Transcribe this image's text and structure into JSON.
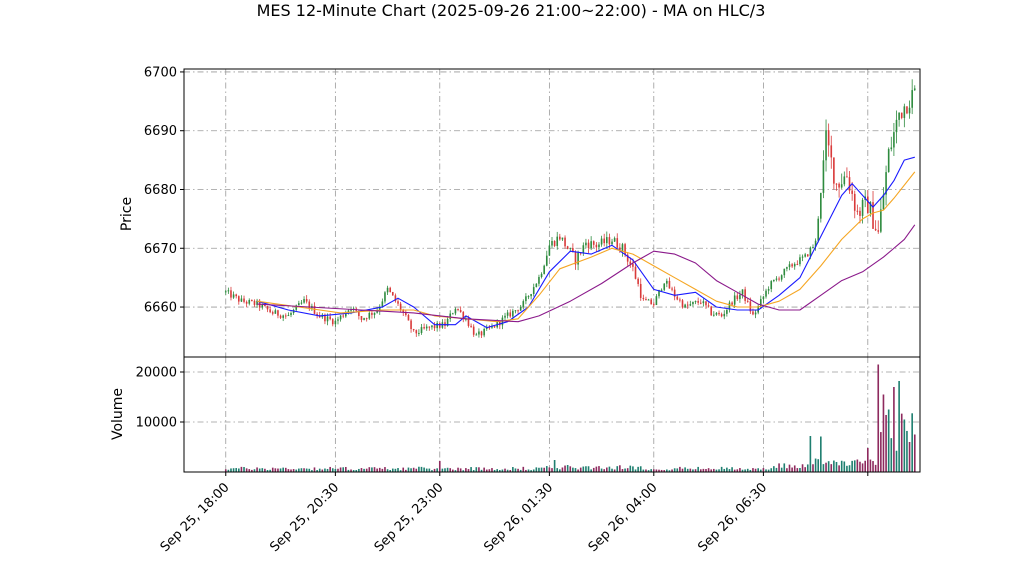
{
  "title": "MES 12-Minute Chart (2025-09-26 21:00~22:00) - MA on HLC/3",
  "colors": {
    "up": "#2e8b3e",
    "down": "#d93a3a",
    "vol_up": "#1f7f70",
    "vol_down": "#8e2a5e",
    "ma_fast": "#1a1aff",
    "ma_mid": "#f5a623",
    "ma_slow": "#8b1a8b",
    "grid": "#9a9a9a"
  },
  "chart_data": {
    "type": "candlestick",
    "price_panel": {
      "ylabel": "Price",
      "ylim": [
        6651.5,
        6700.5
      ],
      "yticks": [
        6660,
        6670,
        6680,
        6690,
        6700
      ],
      "ytick_labels": [
        "6660",
        "6670",
        "6680",
        "6690",
        "6700"
      ]
    },
    "volume_panel": {
      "ylabel": "Volume",
      "ylim": [
        0,
        23000
      ],
      "yticks": [
        10000,
        20000
      ],
      "ytick_labels": [
        "10000",
        "20000"
      ]
    },
    "x_axis": {
      "xlim": [
        -4,
        66.5
      ],
      "ticks": [
        0,
        10.5,
        20.5,
        31,
        41,
        51.5,
        61.5
      ],
      "tick_labels": [
        "Sep 25, 18:00",
        "Sep 25, 20:30",
        "Sep 25, 23:00",
        "Sep 26, 01:30",
        "Sep 26, 04:00",
        "Sep 26, 06:30",
        ""
      ]
    },
    "grid": true,
    "series_anchors_close": [
      [
        0,
        6662.5
      ],
      [
        1.5,
        6661
      ],
      [
        3,
        6660.5
      ],
      [
        4.5,
        6659
      ],
      [
        6,
        6658.5
      ],
      [
        7.5,
        6661
      ],
      [
        9,
        6658.5
      ],
      [
        10.5,
        6657.5
      ],
      [
        12,
        6660
      ],
      [
        13,
        6658
      ],
      [
        14.5,
        6659.5
      ],
      [
        15.5,
        6663
      ],
      [
        17,
        6659
      ],
      [
        18,
        6655.5
      ],
      [
        19.5,
        6656.5
      ],
      [
        21,
        6657
      ],
      [
        22,
        6660
      ],
      [
        23,
        6658
      ],
      [
        24,
        6655
      ],
      [
        25.5,
        6656.5
      ],
      [
        27,
        6658.5
      ],
      [
        28.5,
        6660.5
      ],
      [
        30,
        6665
      ],
      [
        31,
        6670.5
      ],
      [
        32,
        6672
      ],
      [
        33.5,
        6668
      ],
      [
        34.5,
        6671
      ],
      [
        35.5,
        6670.5
      ],
      [
        37,
        6671.5
      ],
      [
        38,
        6670
      ],
      [
        39,
        6666.5
      ],
      [
        40,
        6661
      ],
      [
        41,
        6660.5
      ],
      [
        42,
        6664.5
      ],
      [
        43,
        6662
      ],
      [
        44,
        6660
      ],
      [
        45.5,
        6661
      ],
      [
        46.5,
        6659
      ],
      [
        47.5,
        6658.5
      ],
      [
        48.5,
        6661
      ],
      [
        49.5,
        6662.5
      ],
      [
        50.5,
        6658.5
      ],
      [
        51,
        6660
      ],
      [
        52,
        6663.5
      ],
      [
        53.5,
        6666
      ],
      [
        54.5,
        6667.5
      ],
      [
        55.5,
        6668.5
      ],
      [
        56.5,
        6671
      ],
      [
        57.5,
        6688.5
      ],
      [
        58.5,
        6681
      ],
      [
        59.5,
        6682.5
      ],
      [
        60.5,
        6676
      ],
      [
        61.5,
        6677.5
      ],
      [
        62.5,
        6672.5
      ],
      [
        63.5,
        6686
      ],
      [
        64.5,
        6693
      ],
      [
        65.5,
        6695.5
      ],
      [
        66,
        6696.5
      ]
    ],
    "moving_averages": [
      {
        "color_key": "ma_fast",
        "points": [
          [
            3,
            6661
          ],
          [
            6,
            6659.5
          ],
          [
            9,
            6658.5
          ],
          [
            12,
            6659
          ],
          [
            15,
            6660
          ],
          [
            16.5,
            6661.5
          ],
          [
            18,
            6660
          ],
          [
            20,
            6657
          ],
          [
            22,
            6657
          ],
          [
            23,
            6658.5
          ],
          [
            25,
            6656.5
          ],
          [
            27,
            6657.5
          ],
          [
            29,
            6660
          ],
          [
            31,
            6666
          ],
          [
            33,
            6669.5
          ],
          [
            35,
            6669
          ],
          [
            37,
            6670.5
          ],
          [
            39,
            6668
          ],
          [
            41,
            6663
          ],
          [
            43,
            6662
          ],
          [
            45,
            6662.5
          ],
          [
            47,
            6660
          ],
          [
            49,
            6659.5
          ],
          [
            51,
            6659.5
          ],
          [
            53,
            6662
          ],
          [
            55,
            6665
          ],
          [
            57,
            6672
          ],
          [
            59,
            6679
          ],
          [
            60,
            6681
          ],
          [
            61,
            6679
          ],
          [
            62,
            6677
          ],
          [
            63,
            6679
          ],
          [
            64,
            6681.5
          ],
          [
            65,
            6685
          ],
          [
            66,
            6685.5
          ]
        ]
      },
      {
        "color_key": "ma_mid",
        "points": [
          [
            3,
            6661
          ],
          [
            7,
            6660
          ],
          [
            11,
            6659
          ],
          [
            15,
            6659.5
          ],
          [
            18,
            6659.5
          ],
          [
            20,
            6658.5
          ],
          [
            23,
            6658
          ],
          [
            26,
            6657.5
          ],
          [
            28,
            6658
          ],
          [
            30,
            6662
          ],
          [
            32,
            6666.5
          ],
          [
            35,
            6668.5
          ],
          [
            37,
            6670
          ],
          [
            39,
            6669
          ],
          [
            41,
            6667
          ],
          [
            43,
            6665
          ],
          [
            45,
            6663
          ],
          [
            47,
            6661
          ],
          [
            49,
            6660
          ],
          [
            51,
            6660
          ],
          [
            53,
            6661
          ],
          [
            55,
            6663
          ],
          [
            57,
            6667
          ],
          [
            59,
            6671.5
          ],
          [
            61,
            6675
          ],
          [
            62,
            6676
          ],
          [
            63,
            6676.5
          ],
          [
            64,
            6678.5
          ],
          [
            66,
            6683
          ]
        ]
      },
      {
        "color_key": "ma_slow",
        "points": [
          [
            3,
            6660.5
          ],
          [
            8,
            6660
          ],
          [
            13,
            6659.5
          ],
          [
            18,
            6659
          ],
          [
            23,
            6658
          ],
          [
            28,
            6657.5
          ],
          [
            30,
            6658.5
          ],
          [
            33,
            6661
          ],
          [
            36,
            6664
          ],
          [
            39,
            6667.5
          ],
          [
            41,
            6669.5
          ],
          [
            43,
            6669
          ],
          [
            45,
            6667.5
          ],
          [
            47,
            6664.5
          ],
          [
            49,
            6662.5
          ],
          [
            51,
            6660.5
          ],
          [
            53,
            6659.5
          ],
          [
            55,
            6659.5
          ],
          [
            57,
            6662
          ],
          [
            59,
            6664.5
          ],
          [
            61,
            6666
          ],
          [
            63,
            6668.5
          ],
          [
            65,
            6671.5
          ],
          [
            66,
            6674
          ]
        ]
      }
    ],
    "volume_spikes": [
      [
        20.5,
        2200
      ],
      [
        31.5,
        2400
      ],
      [
        56,
        7200
      ],
      [
        57,
        7100
      ],
      [
        58.5,
        2000
      ],
      [
        60.5,
        2500
      ],
      [
        61.5,
        4800
      ],
      [
        62.5,
        21500
      ],
      [
        63,
        15500
      ],
      [
        63.5,
        12500
      ],
      [
        64,
        17000
      ],
      [
        64.5,
        18200
      ],
      [
        65,
        10500
      ],
      [
        65.5,
        6000
      ],
      [
        66,
        7500
      ]
    ]
  }
}
